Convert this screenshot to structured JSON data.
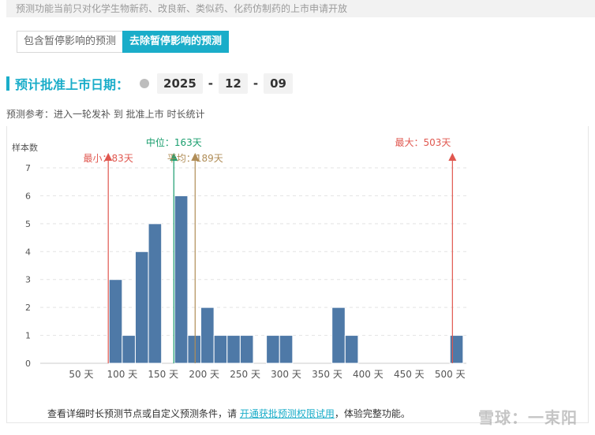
{
  "notice": "预测功能当前只对化学生物新药、改良新、类似药、化药仿制药的上市申请开放",
  "tabs": [
    {
      "label": "包含暂停影响的预测",
      "active": false
    },
    {
      "label": "去除暂停影响的预测",
      "active": true
    }
  ],
  "date_section": {
    "title": "预计批准上市日期：",
    "year": "2025",
    "month": "12",
    "day": "09",
    "separator": "-"
  },
  "reference": "预测参考：进入一轮发补 到 批准上市 时长统计",
  "chart_data": {
    "type": "bar",
    "ylabel": "样本数",
    "xlabel": "",
    "xlim": [
      0,
      520
    ],
    "ylim": [
      0,
      7
    ],
    "x_ticks": [
      50,
      100,
      150,
      200,
      250,
      300,
      350,
      400,
      450,
      500
    ],
    "x_tick_labels": [
      "50 天",
      "100 天",
      "150 天",
      "200 天",
      "250 天",
      "300 天",
      "350 天",
      "400 天",
      "450 天",
      "500 天"
    ],
    "y_ticks": [
      0,
      1,
      2,
      3,
      4,
      5,
      6,
      7
    ],
    "bin_width": 16,
    "bins": [
      {
        "start": 84,
        "count": 3
      },
      {
        "start": 100,
        "count": 1
      },
      {
        "start": 116,
        "count": 4
      },
      {
        "start": 132,
        "count": 5
      },
      {
        "start": 164,
        "count": 6
      },
      {
        "start": 180,
        "count": 1
      },
      {
        "start": 196,
        "count": 2
      },
      {
        "start": 212,
        "count": 1
      },
      {
        "start": 228,
        "count": 1
      },
      {
        "start": 244,
        "count": 1
      },
      {
        "start": 276,
        "count": 1
      },
      {
        "start": 292,
        "count": 1
      },
      {
        "start": 356,
        "count": 2
      },
      {
        "start": 372,
        "count": 1
      },
      {
        "start": 500,
        "count": 1
      }
    ],
    "markers": [
      {
        "label": "最小：83天",
        "value": 83,
        "color": "#e0574f",
        "row": 2
      },
      {
        "label": "中位：163天",
        "value": 163,
        "color": "#1a9e6e",
        "row": 1
      },
      {
        "label": "平均：189天",
        "value": 189,
        "color": "#b08d57",
        "row": 2
      },
      {
        "label": "最大：503天",
        "value": 503,
        "color": "#e0574f",
        "row": 1
      }
    ],
    "bar_color": "#4e79a7",
    "grid": true,
    "legend": "none"
  },
  "footer": {
    "prefix": "查看详细时长预测节点或自定义预测条件，请 ",
    "link": "开通获批预测权限试用",
    "suffix": "，体验完整功能。"
  },
  "watermark": "雪球：一束阳"
}
